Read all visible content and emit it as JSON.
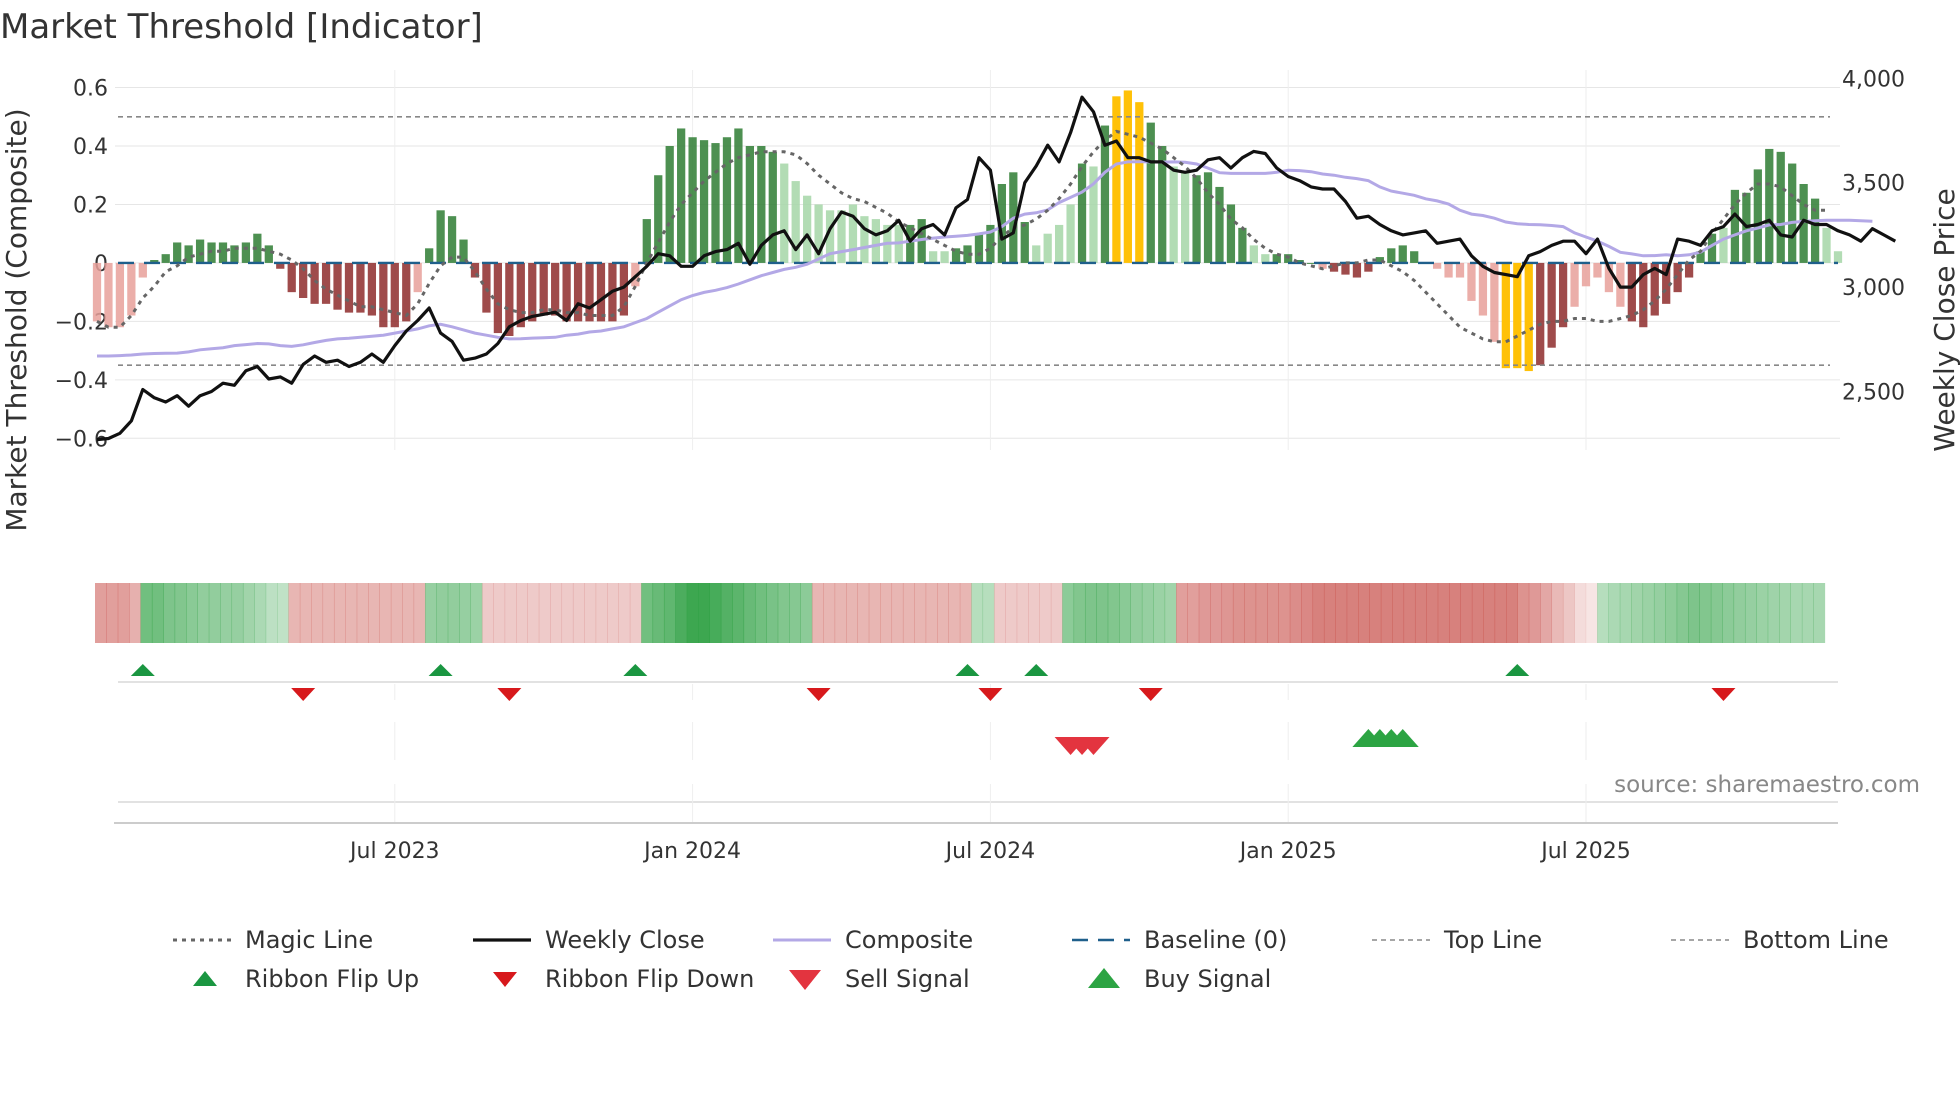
{
  "chart_data": {
    "type": "bar",
    "title": "Market Threshold [Indicator]",
    "source": "source: sharemaestro.com",
    "left_axis": {
      "label": "Market Threshold (Composite)",
      "ticks": [
        0.6,
        0.4,
        0.2,
        0,
        -0.2,
        -0.4,
        -0.6
      ],
      "tick_labels": [
        "0.6",
        "0.4",
        "0.2",
        "0",
        "−0.2",
        "−0.4",
        "−0.6"
      ],
      "ylim": [
        -0.64,
        0.66
      ]
    },
    "right_axis": {
      "label": "Weekly Close Price",
      "ticks": [
        4000,
        3500,
        3000,
        2500
      ],
      "tick_labels": [
        "4,000",
        "3,500",
        "3,000",
        "2,500"
      ],
      "ylim": [
        2220,
        4040
      ]
    },
    "x_axis": {
      "tick_labels": [
        "Jul 2023",
        "Jan 2024",
        "Jul 2024",
        "Jan 2025",
        "Jul 2025"
      ],
      "tick_weeks": [
        26,
        52,
        78,
        104,
        130
      ]
    },
    "top_line": 0.5,
    "bottom_line": -0.35,
    "baseline": 0,
    "composite_bars": [
      -0.2,
      -0.22,
      -0.22,
      -0.18,
      -0.05,
      0.01,
      0.03,
      0.07,
      0.06,
      0.08,
      0.07,
      0.07,
      0.06,
      0.07,
      0.1,
      0.06,
      -0.02,
      -0.1,
      -0.12,
      -0.14,
      -0.14,
      -0.16,
      -0.17,
      -0.17,
      -0.18,
      -0.22,
      -0.22,
      -0.2,
      -0.1,
      0.05,
      0.18,
      0.16,
      0.08,
      -0.05,
      -0.17,
      -0.24,
      -0.25,
      -0.22,
      -0.2,
      -0.18,
      -0.18,
      -0.2,
      -0.2,
      -0.2,
      -0.2,
      -0.2,
      -0.18,
      -0.08,
      0.15,
      0.3,
      0.4,
      0.46,
      0.43,
      0.42,
      0.41,
      0.43,
      0.46,
      0.4,
      0.4,
      0.38,
      0.34,
      0.28,
      0.23,
      0.2,
      0.18,
      0.18,
      0.2,
      0.16,
      0.15,
      0.13,
      0.13,
      0.13,
      0.15,
      0.04,
      0.04,
      0.05,
      0.06,
      0.1,
      0.13,
      0.27,
      0.31,
      0.14,
      0.06,
      0.1,
      0.13,
      0.2,
      0.34,
      0.33,
      0.47,
      0.57,
      0.59,
      0.55,
      0.48,
      0.4,
      0.33,
      0.31,
      0.3,
      0.31,
      0.26,
      0.2,
      0.12,
      0.06,
      0.03,
      0.03,
      0.03,
      0.01,
      0.0,
      -0.02,
      -0.03,
      -0.04,
      -0.05,
      -0.03,
      0.02,
      0.05,
      0.06,
      0.04,
      0.0,
      -0.02,
      -0.05,
      -0.05,
      -0.13,
      -0.18,
      -0.27,
      -0.36,
      -0.36,
      -0.37,
      -0.35,
      -0.29,
      -0.22,
      -0.15,
      -0.08,
      -0.05,
      -0.1,
      -0.15,
      -0.2,
      -0.22,
      -0.18,
      -0.14,
      -0.1,
      -0.05,
      0.04,
      0.1,
      0.12,
      0.25,
      0.24,
      0.32,
      0.39,
      0.38,
      0.34,
      0.27,
      0.22,
      0.12,
      0.04
    ],
    "weekly_close": [
      2270,
      2275,
      2300,
      2360,
      2510,
      2470,
      2450,
      2480,
      2430,
      2480,
      2500,
      2540,
      2530,
      2600,
      2620,
      2560,
      2570,
      2540,
      2630,
      2670,
      2640,
      2650,
      2620,
      2640,
      2680,
      2640,
      2720,
      2790,
      2840,
      2900,
      2780,
      2740,
      2650,
      2660,
      2680,
      2730,
      2810,
      2840,
      2860,
      2870,
      2880,
      2840,
      2920,
      2900,
      2940,
      2980,
      3000,
      3050,
      3100,
      3160,
      3150,
      3100,
      3100,
      3150,
      3170,
      3180,
      3210,
      3110,
      3200,
      3250,
      3270,
      3180,
      3250,
      3160,
      3280,
      3360,
      3340,
      3280,
      3250,
      3270,
      3320,
      3220,
      3280,
      3300,
      3250,
      3380,
      3420,
      3620,
      3560,
      3230,
      3260,
      3500,
      3580,
      3680,
      3600,
      3740,
      3910,
      3840,
      3680,
      3700,
      3620,
      3620,
      3600,
      3600,
      3560,
      3550,
      3560,
      3610,
      3620,
      3570,
      3620,
      3650,
      3640,
      3570,
      3530,
      3510,
      3480,
      3470,
      3470,
      3410,
      3330,
      3340,
      3300,
      3270,
      3250,
      3260,
      3270,
      3210,
      3220,
      3230,
      3150,
      3100,
      3070,
      3060,
      3050,
      3150,
      3170,
      3200,
      3220,
      3220,
      3160,
      3230,
      3090,
      3000,
      3000,
      3060,
      3090,
      3060,
      3230,
      3220,
      3200,
      3270,
      3290,
      3350,
      3290,
      3300,
      3320,
      3250,
      3240,
      3320,
      3300,
      3300,
      3270,
      3250,
      3220,
      3280,
      3250,
      3220
    ],
    "composite_line": [
      2670,
      2670,
      2672,
      2675,
      2680,
      2682,
      2683,
      2684,
      2690,
      2700,
      2705,
      2710,
      2720,
      2725,
      2730,
      2728,
      2720,
      2716,
      2724,
      2735,
      2745,
      2752,
      2755,
      2760,
      2765,
      2770,
      2780,
      2790,
      2800,
      2815,
      2822,
      2810,
      2795,
      2780,
      2770,
      2760,
      2752,
      2753,
      2756,
      2758,
      2760,
      2770,
      2775,
      2785,
      2790,
      2800,
      2810,
      2830,
      2850,
      2880,
      2910,
      2940,
      2960,
      2975,
      2985,
      2998,
      3015,
      3035,
      3055,
      3070,
      3085,
      3095,
      3110,
      3135,
      3160,
      3170,
      3180,
      3190,
      3200,
      3210,
      3212,
      3220,
      3228,
      3235,
      3240,
      3244,
      3248,
      3255,
      3264,
      3290,
      3330,
      3350,
      3356,
      3370,
      3405,
      3430,
      3455,
      3495,
      3550,
      3590,
      3600,
      3601,
      3600,
      3599,
      3600,
      3598,
      3590,
      3570,
      3548,
      3545,
      3545,
      3545,
      3545,
      3550,
      3560,
      3558,
      3553,
      3542,
      3536,
      3526,
      3520,
      3510,
      3480,
      3460,
      3450,
      3440,
      3423,
      3413,
      3398,
      3368,
      3350,
      3343,
      3330,
      3312,
      3304,
      3300,
      3299,
      3295,
      3290,
      3260,
      3240,
      3220,
      3195,
      3167,
      3159,
      3150,
      3151,
      3155,
      3150,
      3155,
      3168,
      3200,
      3230,
      3250,
      3270,
      3283,
      3298,
      3300,
      3310,
      3315,
      3318,
      3320,
      3320,
      3320,
      3318,
      3316
    ],
    "magic_line": [
      -0.2,
      -0.22,
      -0.22,
      -0.18,
      -0.12,
      -0.08,
      -0.03,
      -0.01,
      0.02,
      0.03,
      0.04,
      0.04,
      0.05,
      0.05,
      0.05,
      0.04,
      0.03,
      0.01,
      -0.02,
      -0.06,
      -0.09,
      -0.11,
      -0.13,
      -0.15,
      -0.15,
      -0.16,
      -0.17,
      -0.18,
      -0.14,
      -0.07,
      -0.01,
      0.02,
      0.02,
      -0.03,
      -0.09,
      -0.14,
      -0.16,
      -0.17,
      -0.17,
      -0.16,
      -0.16,
      -0.17,
      -0.17,
      -0.18,
      -0.18,
      -0.18,
      -0.15,
      -0.08,
      -0.0,
      0.07,
      0.14,
      0.2,
      0.24,
      0.28,
      0.31,
      0.34,
      0.36,
      0.37,
      0.38,
      0.38,
      0.38,
      0.37,
      0.34,
      0.3,
      0.27,
      0.24,
      0.22,
      0.21,
      0.19,
      0.17,
      0.14,
      0.12,
      0.1,
      0.08,
      0.06,
      0.04,
      0.03,
      0.03,
      0.05,
      0.09,
      0.12,
      0.13,
      0.15,
      0.18,
      0.22,
      0.27,
      0.33,
      0.38,
      0.42,
      0.45,
      0.44,
      0.43,
      0.41,
      0.39,
      0.36,
      0.33,
      0.29,
      0.24,
      0.2,
      0.15,
      0.12,
      0.08,
      0.05,
      0.03,
      0.02,
      0.0,
      -0.01,
      -0.02,
      -0.01,
      0.0,
      0.0,
      0.01,
      0.01,
      -0.01,
      -0.03,
      -0.06,
      -0.1,
      -0.14,
      -0.18,
      -0.22,
      -0.24,
      -0.26,
      -0.27,
      -0.27,
      -0.25,
      -0.23,
      -0.21,
      -0.2,
      -0.2,
      -0.19,
      -0.19,
      -0.2,
      -0.2,
      -0.19,
      -0.18,
      -0.16,
      -0.13,
      -0.09,
      -0.04,
      0.01,
      0.04,
      0.1,
      0.15,
      0.2,
      0.24,
      0.27,
      0.27,
      0.26,
      0.23,
      0.2,
      0.18,
      0.18
    ],
    "ribbon": [
      -0.55,
      -0.55,
      -0.55,
      -0.45,
      0.68,
      0.68,
      0.62,
      0.6,
      0.56,
      0.52,
      0.52,
      0.5,
      0.5,
      0.45,
      0.4,
      0.32,
      0.3,
      -0.42,
      -0.42,
      -0.42,
      -0.42,
      -0.42,
      -0.42,
      -0.42,
      -0.42,
      -0.42,
      -0.42,
      -0.42,
      -0.42,
      0.5,
      0.52,
      0.52,
      0.5,
      0.48,
      -0.3,
      -0.3,
      -0.3,
      -0.3,
      -0.3,
      -0.3,
      -0.3,
      -0.3,
      -0.3,
      -0.3,
      -0.3,
      -0.3,
      -0.3,
      -0.3,
      0.68,
      0.72,
      0.76,
      0.86,
      0.93,
      0.93,
      0.88,
      0.82,
      0.78,
      0.72,
      0.68,
      0.64,
      0.6,
      0.58,
      0.55,
      -0.42,
      -0.42,
      -0.42,
      -0.42,
      -0.42,
      -0.42,
      -0.42,
      -0.42,
      -0.42,
      -0.42,
      -0.42,
      -0.42,
      -0.42,
      -0.42,
      0.35,
      0.35,
      -0.3,
      -0.3,
      -0.3,
      -0.3,
      -0.3,
      -0.3,
      0.55,
      0.6,
      0.62,
      0.62,
      0.6,
      0.56,
      0.52,
      0.5,
      0.48,
      0.45,
      -0.55,
      -0.55,
      -0.58,
      -0.58,
      -0.6,
      -0.62,
      -0.62,
      -0.62,
      -0.62,
      -0.62,
      -0.65,
      -0.68,
      -0.72,
      -0.72,
      -0.72,
      -0.72,
      -0.72,
      -0.72,
      -0.72,
      -0.72,
      -0.72,
      -0.72,
      -0.72,
      -0.72,
      -0.72,
      -0.72,
      -0.72,
      -0.72,
      -0.72,
      -0.72,
      -0.62,
      -0.58,
      -0.5,
      -0.4,
      -0.32,
      -0.2,
      -0.15,
      0.35,
      0.4,
      0.42,
      0.45,
      0.48,
      0.5,
      0.54,
      0.58,
      0.62,
      0.6,
      0.58,
      0.55,
      0.52,
      0.5,
      0.48,
      0.46,
      0.44,
      0.42,
      0.42,
      0.42
    ],
    "ribbon_flip_up_weeks": [
      4,
      30,
      47,
      76,
      82,
      124
    ],
    "ribbon_flip_down_weeks": [
      18,
      36,
      63,
      78,
      92,
      142
    ],
    "sell_signal_weeks": [
      85,
      86,
      87
    ],
    "buy_signal_weeks": [
      111,
      112,
      113,
      114
    ],
    "series_colors": {
      "bar_pos_strong": "#2e7d32",
      "bar_pos_light": "#a5d6a7",
      "bar_neg_strong": "#8e2b2b",
      "bar_neg_light": "#e8a09a",
      "bar_extreme": "#ffc107",
      "weekly_close": "#111111",
      "composite": "#b3a8e6",
      "magic_line": "#666666",
      "baseline": "#1f5f8b",
      "threshold_line": "#888888",
      "flip_up": "#1a9641",
      "flip_down": "#d7191c",
      "sell": "#e3343f",
      "buy": "#2ca443"
    },
    "legend": [
      {
        "label": "Magic Line",
        "kind": "dotted-line"
      },
      {
        "label": "Weekly Close",
        "kind": "solid-line"
      },
      {
        "label": "Composite",
        "kind": "composite-line"
      },
      {
        "label": "Baseline (0)",
        "kind": "dashed-line"
      },
      {
        "label": "Top Line",
        "kind": "thin-dashed"
      },
      {
        "label": "Bottom Line",
        "kind": "thin-dashed"
      },
      {
        "label": "Ribbon Flip Up",
        "kind": "up-small"
      },
      {
        "label": "Ribbon Flip Down",
        "kind": "down-small"
      },
      {
        "label": "Sell Signal",
        "kind": "down-large"
      },
      {
        "label": "Buy Signal",
        "kind": "up-large"
      }
    ]
  }
}
